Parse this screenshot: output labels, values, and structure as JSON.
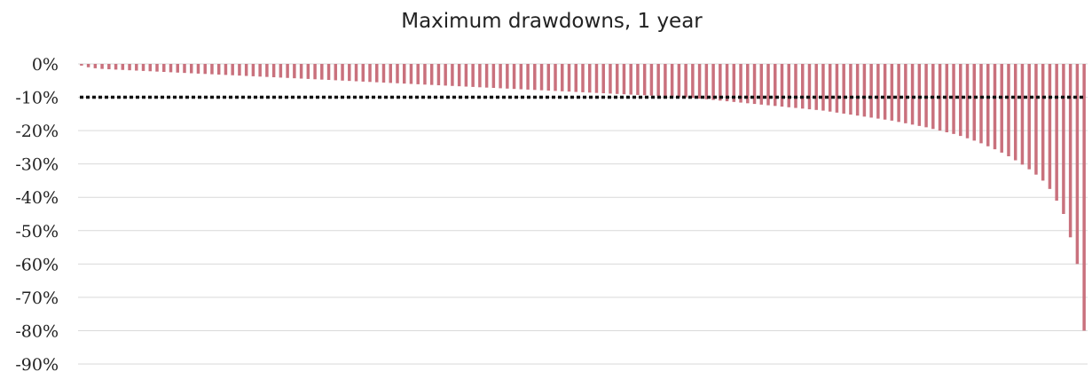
{
  "chart_data": {
    "type": "bar",
    "title": "Maximum drawdowns, 1 year",
    "xlabel": "",
    "ylabel": "",
    "ylim": [
      -90,
      0
    ],
    "yticks": [
      0,
      -10,
      -20,
      -30,
      -40,
      -50,
      -60,
      -70,
      -80,
      -90
    ],
    "ytick_labels": [
      "0%",
      "-10%",
      "-20%",
      "-30%",
      "-40%",
      "-50%",
      "-60%",
      "-70%",
      "-80%",
      "-90%"
    ],
    "grid": true,
    "legend": "none",
    "threshold": {
      "value": -10,
      "style": "dotted",
      "color": "#000000"
    },
    "bar_color": "#c9717d",
    "series": [
      {
        "values": [
          -0.5,
          -1.0,
          -1.3,
          -1.5,
          -1.6,
          -1.7,
          -1.8,
          -1.9,
          -2.0,
          -2.1,
          -2.2,
          -2.3,
          -2.4,
          -2.5,
          -2.6,
          -2.7,
          -2.8,
          -2.9,
          -3.0,
          -3.1,
          -3.2,
          -3.3,
          -3.4,
          -3.5,
          -3.6,
          -3.7,
          -3.8,
          -3.9,
          -4.0,
          -4.1,
          -4.2,
          -4.3,
          -4.4,
          -4.5,
          -4.6,
          -4.7,
          -4.8,
          -4.9,
          -5.0,
          -5.1,
          -5.2,
          -5.3,
          -5.4,
          -5.5,
          -5.6,
          -5.7,
          -5.8,
          -5.9,
          -6.0,
          -6.1,
          -6.2,
          -6.3,
          -6.4,
          -6.5,
          -6.6,
          -6.7,
          -6.8,
          -6.9,
          -7.0,
          -7.1,
          -7.2,
          -7.3,
          -7.4,
          -7.5,
          -7.6,
          -7.7,
          -7.8,
          -7.9,
          -8.0,
          -8.1,
          -8.2,
          -8.3,
          -8.4,
          -8.5,
          -8.6,
          -8.7,
          -8.8,
          -8.9,
          -9.0,
          -9.1,
          -9.2,
          -9.3,
          -9.4,
          -9.5,
          -9.6,
          -9.7,
          -9.8,
          -9.9,
          -10.0,
          -10.2,
          -10.4,
          -10.6,
          -10.8,
          -11.0,
          -11.2,
          -11.4,
          -11.6,
          -11.8,
          -12.0,
          -12.2,
          -12.4,
          -12.6,
          -12.8,
          -13.0,
          -13.2,
          -13.4,
          -13.6,
          -13.8,
          -14.0,
          -14.3,
          -14.6,
          -14.9,
          -15.2,
          -15.5,
          -15.8,
          -16.1,
          -16.4,
          -16.7,
          -17.0,
          -17.4,
          -17.8,
          -18.2,
          -18.6,
          -19.0,
          -19.5,
          -20.0,
          -20.5,
          -21.0,
          -21.6,
          -22.3,
          -23.0,
          -23.8,
          -24.7,
          -25.6,
          -26.6,
          -27.7,
          -28.9,
          -30.2,
          -31.6,
          -33.2,
          -35.0,
          -37.5,
          -41.0,
          -45.0,
          -52.0,
          -60.0,
          -80.0
        ]
      }
    ]
  }
}
